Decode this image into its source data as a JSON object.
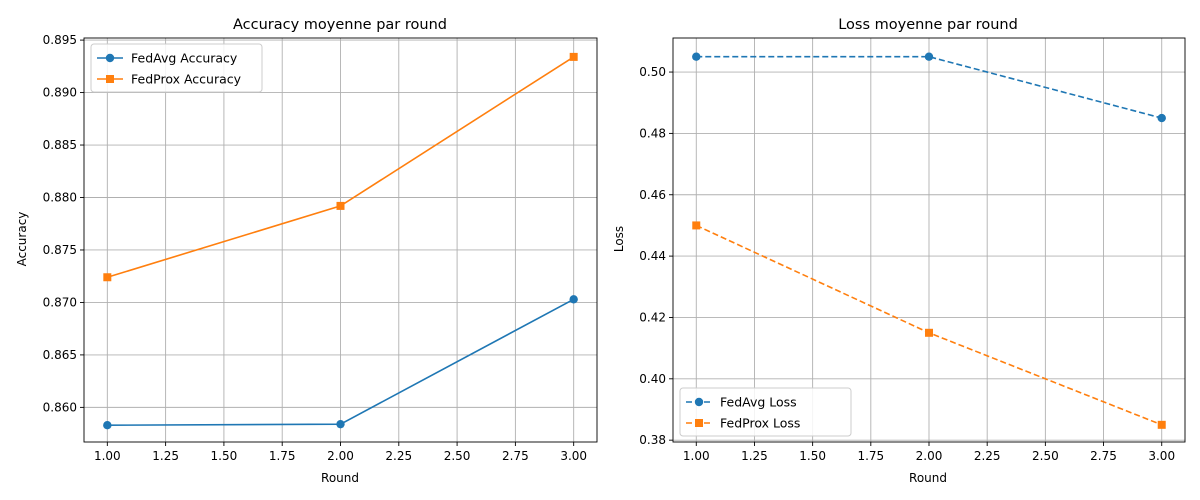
{
  "chart_data": [
    {
      "type": "line",
      "title": "Accuracy moyenne par round",
      "xlabel": "Round",
      "ylabel": "Accuracy",
      "xlim": [
        0.9,
        3.1
      ],
      "ylim": [
        0.8567,
        0.8952
      ],
      "xticks": [
        1.0,
        1.25,
        1.5,
        1.75,
        2.0,
        2.25,
        2.5,
        2.75,
        3.0
      ],
      "xtick_labels": [
        "1.00",
        "1.25",
        "1.50",
        "1.75",
        "2.00",
        "2.25",
        "2.50",
        "2.75",
        "3.00"
      ],
      "yticks": [
        0.86,
        0.865,
        0.87,
        0.875,
        0.88,
        0.885,
        0.89,
        0.895
      ],
      "ytick_labels": [
        "0.860",
        "0.865",
        "0.870",
        "0.875",
        "0.880",
        "0.885",
        "0.890",
        "0.895"
      ],
      "grid": true,
      "legend_position": "upper-left",
      "x": [
        1,
        2,
        3
      ],
      "series": [
        {
          "name": "FedAvg Accuracy",
          "values": [
            0.8583,
            0.8584,
            0.8703
          ],
          "color": "#1f77b4",
          "marker": "circle",
          "linestyle": "solid"
        },
        {
          "name": "FedProx Accuracy",
          "values": [
            0.8724,
            0.8792,
            0.8934
          ],
          "color": "#ff7f0e",
          "marker": "square",
          "linestyle": "solid"
        }
      ]
    },
    {
      "type": "line",
      "title": "Loss moyenne par round",
      "xlabel": "Round",
      "ylabel": "Loss",
      "xlim": [
        0.9,
        3.1
      ],
      "ylim": [
        0.3794,
        0.5111
      ],
      "xticks": [
        1.0,
        1.25,
        1.5,
        1.75,
        2.0,
        2.25,
        2.5,
        2.75,
        3.0
      ],
      "xtick_labels": [
        "1.00",
        "1.25",
        "1.50",
        "1.75",
        "2.00",
        "2.25",
        "2.50",
        "2.75",
        "3.00"
      ],
      "yticks": [
        0.38,
        0.4,
        0.42,
        0.44,
        0.46,
        0.48,
        0.5
      ],
      "ytick_labels": [
        "0.38",
        "0.40",
        "0.42",
        "0.44",
        "0.46",
        "0.48",
        "0.50"
      ],
      "grid": true,
      "legend_position": "lower-left",
      "x": [
        1,
        2,
        3
      ],
      "series": [
        {
          "name": "FedAvg Loss",
          "values": [
            0.505,
            0.505,
            0.485
          ],
          "color": "#1f77b4",
          "marker": "circle",
          "linestyle": "dashed"
        },
        {
          "name": "FedProx Loss",
          "values": [
            0.45,
            0.415,
            0.385
          ],
          "color": "#ff7f0e",
          "marker": "square",
          "linestyle": "dashed"
        }
      ]
    }
  ]
}
